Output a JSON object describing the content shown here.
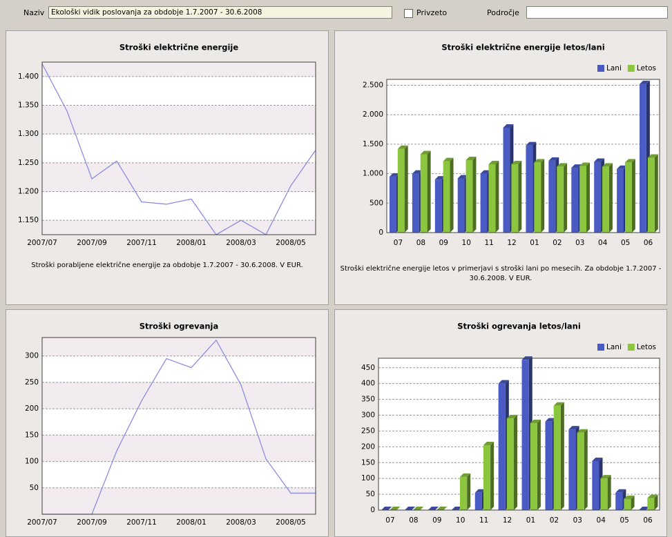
{
  "toolbar": {
    "name_label": "Naziv",
    "name_value": "Ekološki vidik poslovanja za obdobje 1.7.2007 - 30.6.2008",
    "default_label": "Privzeto",
    "area_label": "Področje"
  },
  "chart_data": [
    {
      "type": "line",
      "title": "Stroški električne energije",
      "caption": "Stroški porabljene električne energije za obdobje 1.7.2007 - 30.6.2008. V EUR.",
      "categories": [
        "2007/07",
        null,
        "2007/09",
        null,
        "2007/11",
        null,
        "2008/01",
        null,
        "2008/03",
        null,
        "2008/05",
        null
      ],
      "values": [
        1422,
        1340,
        1222,
        1253,
        1182,
        1178,
        1187,
        1125,
        1150,
        1125,
        1210,
        1272
      ],
      "color": "#8c8ce0",
      "ylim": [
        1125,
        1425
      ],
      "yticks": [
        {
          "value": 1150,
          "label": "1.150"
        },
        {
          "value": 1200,
          "label": "1.200"
        },
        {
          "value": 1250,
          "label": "1.250"
        },
        {
          "value": 1300,
          "label": "1.300"
        },
        {
          "value": 1350,
          "label": "1.350"
        },
        {
          "value": 1400,
          "label": "1.400"
        }
      ],
      "grid": true
    },
    {
      "type": "bar",
      "title": "Stroški električne energije letos/lani",
      "caption": "Stroški električne energije letos v primerjavi s stroški lani po mesecih.  Za obdobje 1.7.2007 - 30.6.2008. V EUR.",
      "categories": [
        "07",
        "08",
        "09",
        "10",
        "11",
        "12",
        "01",
        "02",
        "03",
        "04",
        "05",
        "06"
      ],
      "series": [
        {
          "name": "Lani",
          "color": "#4a5cc4",
          "values": [
            950,
            1000,
            900,
            920,
            1000,
            1780,
            1480,
            1220,
            1100,
            1200,
            1080,
            2520
          ]
        },
        {
          "name": "Letos",
          "color": "#8cc63f",
          "values": [
            1420,
            1330,
            1210,
            1230,
            1160,
            1160,
            1190,
            1120,
            1130,
            1120,
            1190,
            1270
          ]
        }
      ],
      "ylim": [
        0,
        2600
      ],
      "yticks": [
        0,
        500,
        {
          "value": 1000,
          "label": "1.000"
        },
        {
          "value": 1500,
          "label": "1.500"
        },
        {
          "value": 2000,
          "label": "2.000"
        },
        {
          "value": 2500,
          "label": "2.500"
        }
      ],
      "grid": true,
      "legend": "top-right"
    },
    {
      "type": "line",
      "title": "Stroški ogrevanja",
      "categories": [
        "2007/07",
        null,
        "2007/09",
        null,
        "2007/11",
        null,
        "2008/01",
        null,
        "2008/03",
        null,
        "2008/05",
        null
      ],
      "values": [
        0,
        0,
        0,
        120,
        215,
        295,
        278,
        330,
        245,
        105,
        40,
        40
      ],
      "color": "#8c8ce0",
      "ylim": [
        0,
        335
      ],
      "yticks": [
        50,
        100,
        150,
        200,
        250,
        300
      ],
      "grid": true
    },
    {
      "type": "bar",
      "title": "Stroški ogrevanja letos/lani",
      "categories": [
        "07",
        "08",
        "09",
        "10",
        "11",
        "12",
        "01",
        "02",
        "03",
        "04",
        "05",
        "06"
      ],
      "series": [
        {
          "name": "Lani",
          "color": "#4a5cc4",
          "values": [
            0,
            0,
            0,
            0,
            55,
            400,
            475,
            280,
            255,
            155,
            55,
            0
          ]
        },
        {
          "name": "Letos",
          "color": "#8cc63f",
          "values": [
            0,
            0,
            0,
            105,
            205,
            290,
            275,
            330,
            245,
            100,
            35,
            38
          ]
        }
      ],
      "ylim": [
        0,
        480
      ],
      "yticks": [
        0,
        50,
        100,
        150,
        200,
        250,
        300,
        350,
        400,
        450
      ],
      "grid": true,
      "legend": "top-right"
    }
  ]
}
